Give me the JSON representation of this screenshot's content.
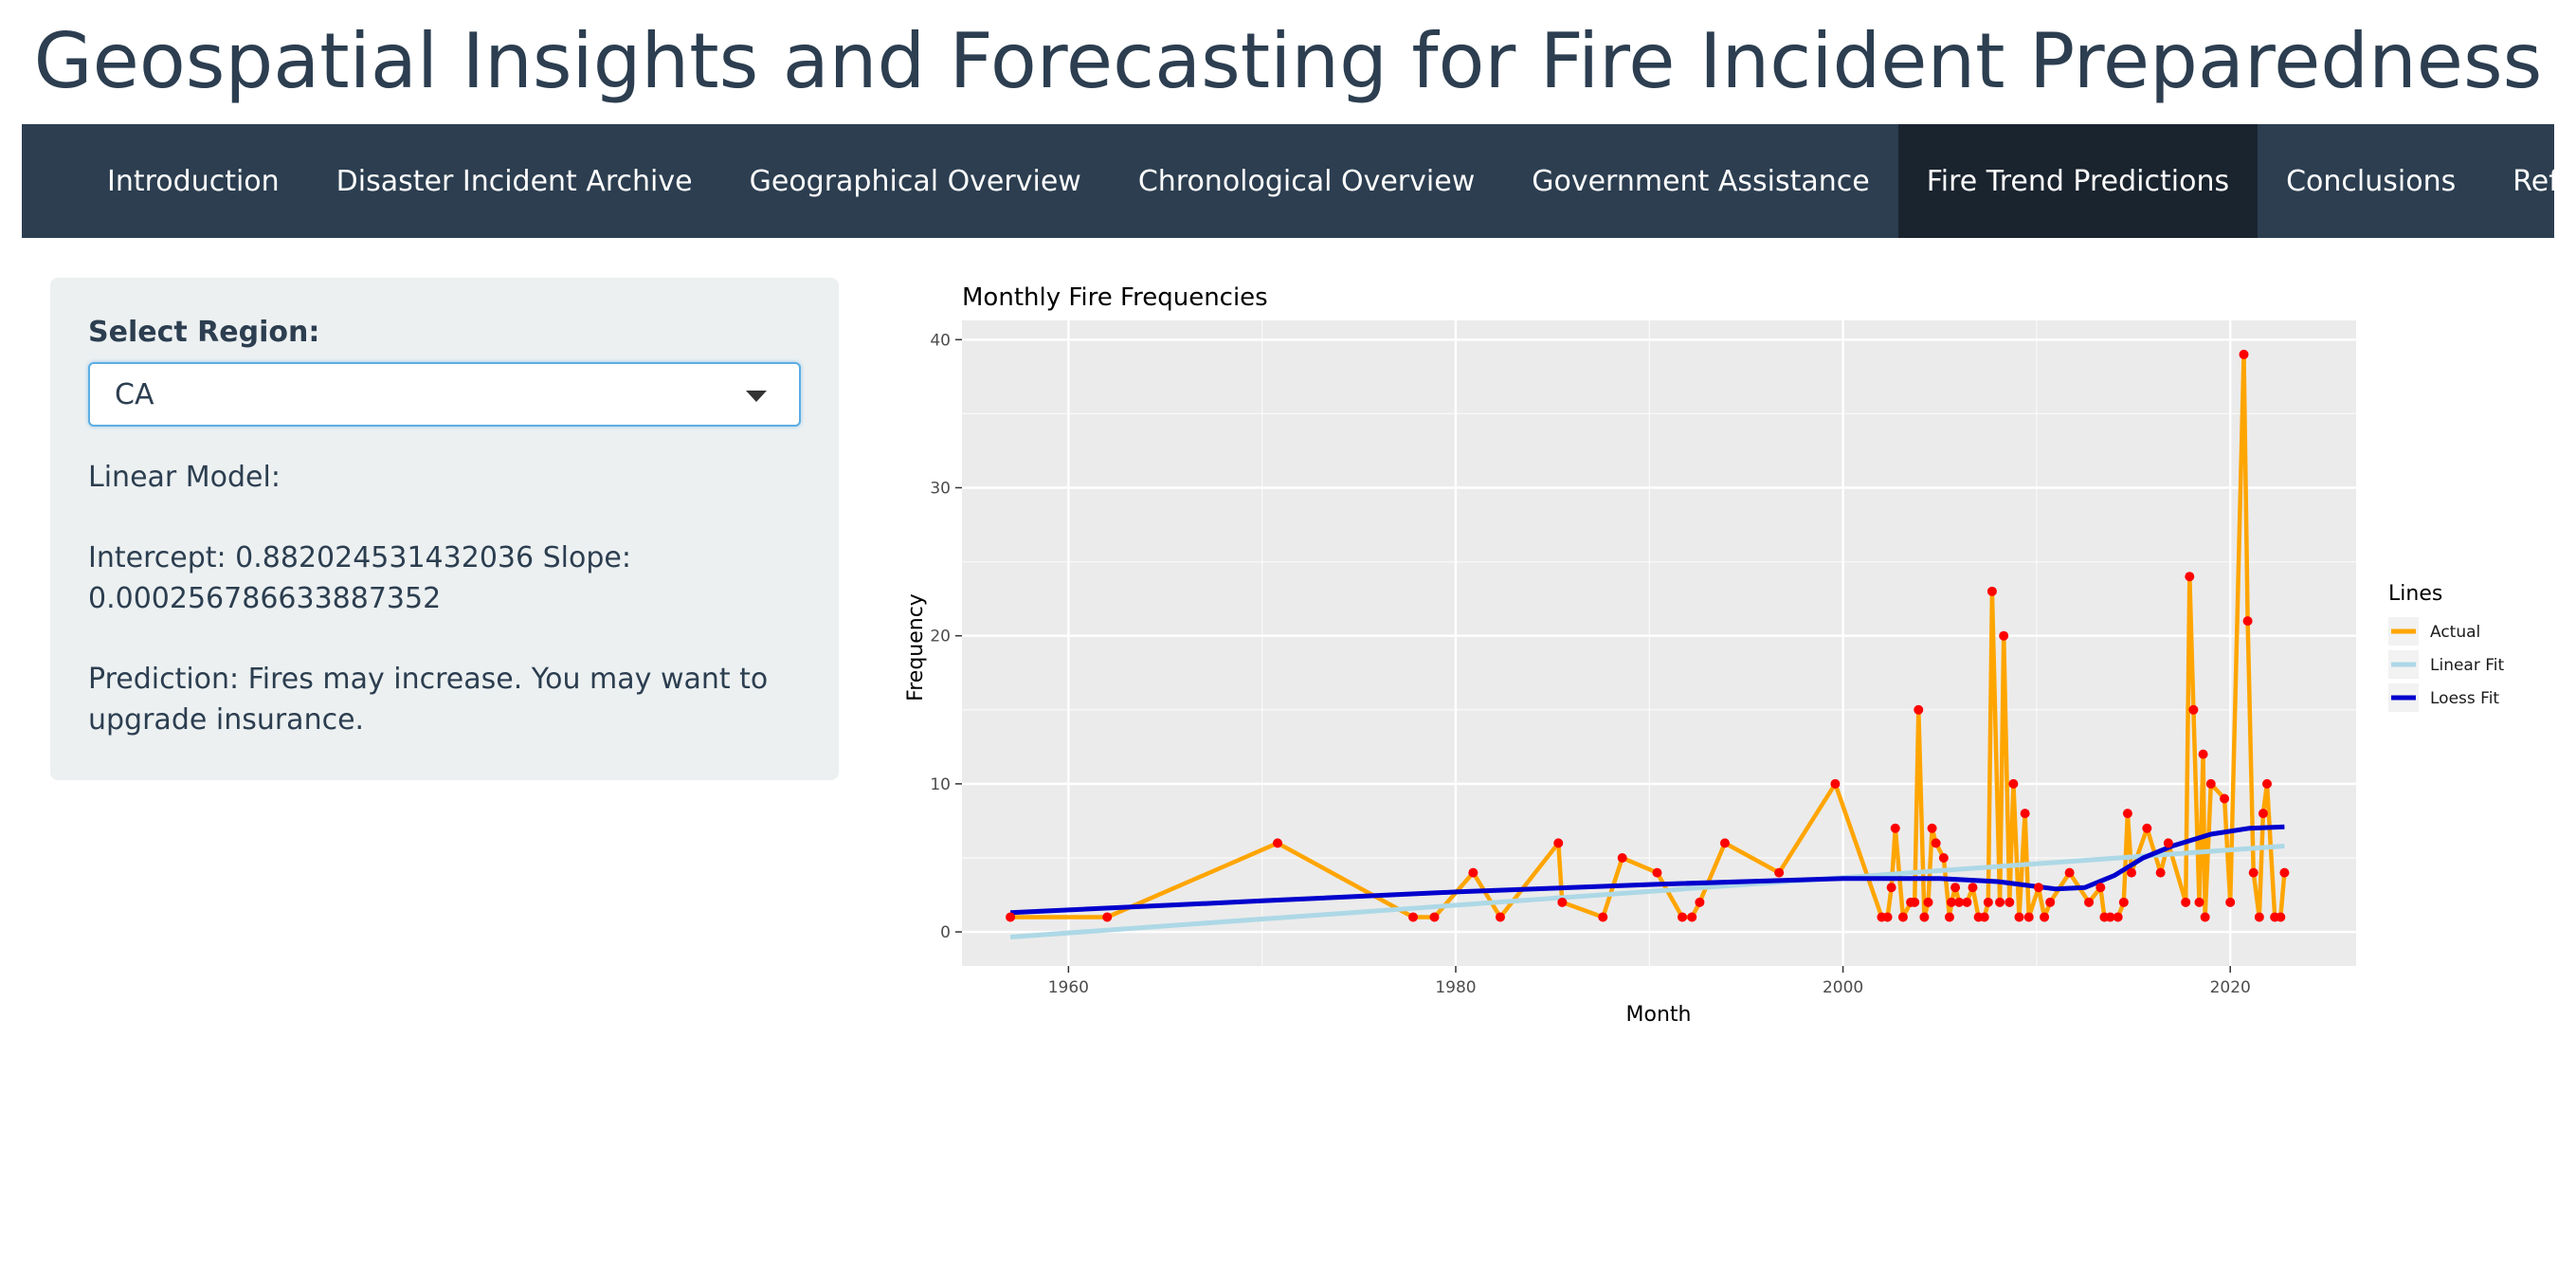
{
  "app": {
    "title": "Geospatial Insights and Forecasting for Fire Incident Preparedness"
  },
  "nav": {
    "tabs": [
      {
        "label": "Introduction"
      },
      {
        "label": "Disaster Incident Archive"
      },
      {
        "label": "Geographical Overview"
      },
      {
        "label": "Chronological Overview"
      },
      {
        "label": "Government Assistance"
      },
      {
        "label": "Fire Trend Predictions",
        "active": true
      },
      {
        "label": "Conclusions"
      },
      {
        "label": "Reference"
      }
    ]
  },
  "sidebar": {
    "region_label": "Select Region:",
    "region_value": "CA",
    "model_label": "Linear Model:",
    "coefficients": "Intercept: 0.882024531432036 Slope: 0.000256786633887352",
    "prediction": "Prediction: Fires may increase. You may want to upgrade insurance."
  },
  "colors": {
    "actual": "#FFA500",
    "points": "#FF0000",
    "linear": "#ADD8E6",
    "loess": "#0000CD",
    "panel": "#EBEBEB",
    "navbar": "#2c3e50",
    "navbar_active": "#1a242f"
  },
  "chart_data": {
    "type": "line",
    "title": "Monthly Fire Frequencies",
    "xlabel": "Month",
    "ylabel": "Frequency",
    "xlim": [
      1954.5,
      2026.5
    ],
    "ylim": [
      -2.3,
      41.3
    ],
    "x_ticks": [
      1960,
      1980,
      2000,
      2020
    ],
    "y_ticks": [
      0,
      10,
      20,
      30,
      40
    ],
    "legend_title": "Lines",
    "legend_position": "right",
    "grid": true,
    "series": [
      {
        "name": "Actual",
        "x": [
          1957.0,
          1962.0,
          1970.8,
          1977.8,
          1978.9,
          1980.9,
          1982.3,
          1985.3,
          1985.5,
          1987.6,
          1988.6,
          1990.4,
          1991.7,
          1992.2,
          1992.6,
          1993.9,
          1996.7,
          1999.6,
          2002.0,
          2002.3,
          2002.5,
          2002.7,
          2003.1,
          2003.5,
          2003.7,
          2003.9,
          2004.2,
          2004.4,
          2004.6,
          2004.8,
          2005.2,
          2005.5,
          2005.6,
          2005.8,
          2006.0,
          2006.4,
          2006.7,
          2007.0,
          2007.3,
          2007.5,
          2007.7,
          2008.1,
          2008.3,
          2008.6,
          2008.8,
          2009.1,
          2009.4,
          2009.6,
          2010.1,
          2010.4,
          2010.7,
          2011.7,
          2012.7,
          2013.3,
          2013.5,
          2013.8,
          2014.2,
          2014.5,
          2014.7,
          2014.9,
          2015.7,
          2016.4,
          2016.8,
          2017.7,
          2017.9,
          2018.1,
          2018.4,
          2018.6,
          2018.7,
          2019.0,
          2019.7,
          2020.0,
          2020.7,
          2020.9,
          2021.2,
          2021.5,
          2021.7,
          2021.9,
          2022.3,
          2022.6,
          2022.8
        ],
        "y": [
          1,
          1,
          6,
          1,
          1,
          4,
          1,
          6,
          2,
          1,
          5,
          4,
          1,
          1,
          2,
          6,
          4,
          10,
          1,
          1,
          3,
          7,
          1,
          2,
          2,
          15,
          1,
          2,
          7,
          6,
          5,
          1,
          2,
          3,
          2,
          2,
          3,
          1,
          1,
          2,
          23,
          2,
          20,
          2,
          10,
          1,
          8,
          1,
          3,
          1,
          2,
          4,
          2,
          3,
          1,
          1,
          1,
          2,
          8,
          4,
          7,
          4,
          6,
          2,
          24,
          15,
          2,
          12,
          1,
          10,
          9,
          2,
          39,
          21,
          4,
          1,
          8,
          10,
          1,
          1,
          4
        ]
      },
      {
        "name": "Linear Fit",
        "x": [
          1957,
          2022.8
        ],
        "y": [
          -0.35,
          5.8
        ]
      },
      {
        "name": "Loess Fit",
        "x": [
          1957,
          1970,
          1980,
          1990,
          2000,
          2005,
          2008,
          2011,
          2012.5,
          2014,
          2015.5,
          2017,
          2019,
          2021,
          2022.8
        ],
        "y": [
          1.3,
          2.1,
          2.7,
          3.2,
          3.6,
          3.6,
          3.4,
          2.9,
          3.0,
          3.8,
          5.0,
          5.8,
          6.6,
          7.0,
          7.1
        ]
      }
    ]
  }
}
